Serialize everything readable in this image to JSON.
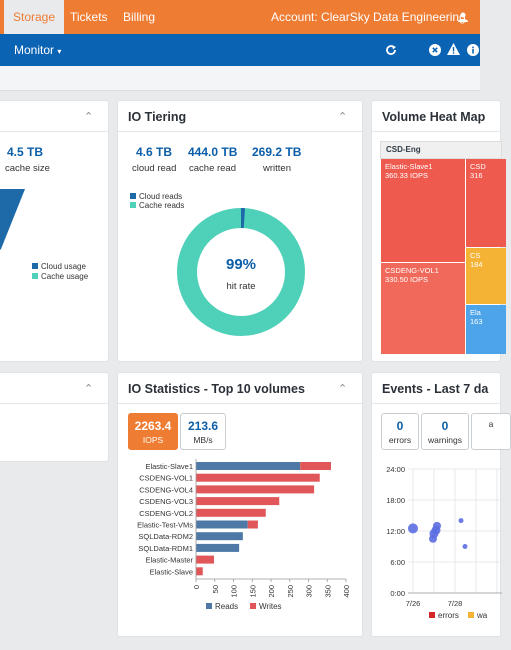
{
  "topbar": {
    "tabs": [
      {
        "label": "Storage"
      },
      {
        "label": "Tickets"
      },
      {
        "label": "Billing"
      }
    ],
    "account": "Account: ClearSky Data Engineering"
  },
  "navbar": {
    "monitor": "Monitor"
  },
  "capacity": {
    "value": "4.5 TB",
    "label": "cache size",
    "legend": [
      "Cloud usage",
      "Cache usage"
    ]
  },
  "io_tiering": {
    "title": "IO Tiering",
    "stats": [
      {
        "value": "4.6 TB",
        "label": "cloud read"
      },
      {
        "value": "444.0 TB",
        "label": "cache read"
      },
      {
        "value": "269.2 TB",
        "label": "written"
      }
    ],
    "legend": [
      "Cloud reads",
      "Cache reads"
    ],
    "hit_rate": "99%",
    "hit_rate_label": "hit rate",
    "hit_fraction": 0.99
  },
  "heatmap": {
    "title": "Volume Heat Map",
    "group": "CSD-Eng",
    "tiles": [
      {
        "name": "Elastic-Slave1",
        "iops": "360.33 IOPS"
      },
      {
        "name": "CSDENG-VOL1",
        "iops": "330.50 IOPS"
      },
      {
        "name": "CSD",
        "iops": "316"
      },
      {
        "name": "CS",
        "iops": "184"
      },
      {
        "name": "Ela",
        "iops": "163"
      }
    ]
  },
  "io_stats": {
    "title": "IO Statistics - Top 10 volumes",
    "iops_value": "2263.4",
    "iops_label": "IOPS",
    "mbs_value": "213.6",
    "mbs_label": "MB/s"
  },
  "events": {
    "title": "Events - Last 7 da",
    "buttons": [
      {
        "count": "0",
        "label": "errors"
      },
      {
        "count": "0",
        "label": "warnings"
      },
      {
        "count": "",
        "label": "a"
      }
    ],
    "legend": [
      "errors",
      "wa"
    ]
  },
  "chart_data": [
    {
      "type": "bar",
      "orientation": "horizontal",
      "stacked": true,
      "categories": [
        "Elastic-Slave1",
        "CSDENG-VOL1",
        "CSDENG-VOL4",
        "CSDENG-VOL3",
        "CSDENG-VOL2",
        "Elastic-Test-VMs",
        "SQLData-RDM2",
        "SQLData-RDM1",
        "Elastic-Master",
        "Elastic-Slave"
      ],
      "series": [
        {
          "name": "Reads",
          "values": [
            278,
            0,
            0,
            0,
            0,
            138,
            125,
            115,
            0,
            0
          ]
        },
        {
          "name": "Writes",
          "values": [
            82,
            330,
            315,
            222,
            186,
            27,
            0,
            0,
            48,
            18
          ]
        }
      ],
      "xlim": [
        0,
        400
      ],
      "xticks": [
        0,
        50,
        100,
        150,
        200,
        250,
        300,
        350,
        400
      ],
      "legend_position": "bottom",
      "colors": {
        "Reads": "#4e79a7",
        "Writes": "#e15759"
      }
    },
    {
      "type": "scatter",
      "xticks": [
        "7/26",
        "7/28"
      ],
      "yticks": [
        "24:00",
        "18:00",
        "12:00",
        "6:00",
        "0:00"
      ],
      "points": [
        {
          "x": "7/26",
          "y": "12:30"
        },
        {
          "x": "7/27",
          "y": "12:10"
        },
        {
          "x": "7/27",
          "y": "11:30"
        },
        {
          "x": "7/27",
          "y": "10:30"
        },
        {
          "x": "7/27",
          "y": "13:00"
        },
        {
          "x": "7/28",
          "y": "14:00"
        },
        {
          "x": "7/28",
          "y": "9:00"
        }
      ],
      "legend_position": "bottom"
    }
  ]
}
